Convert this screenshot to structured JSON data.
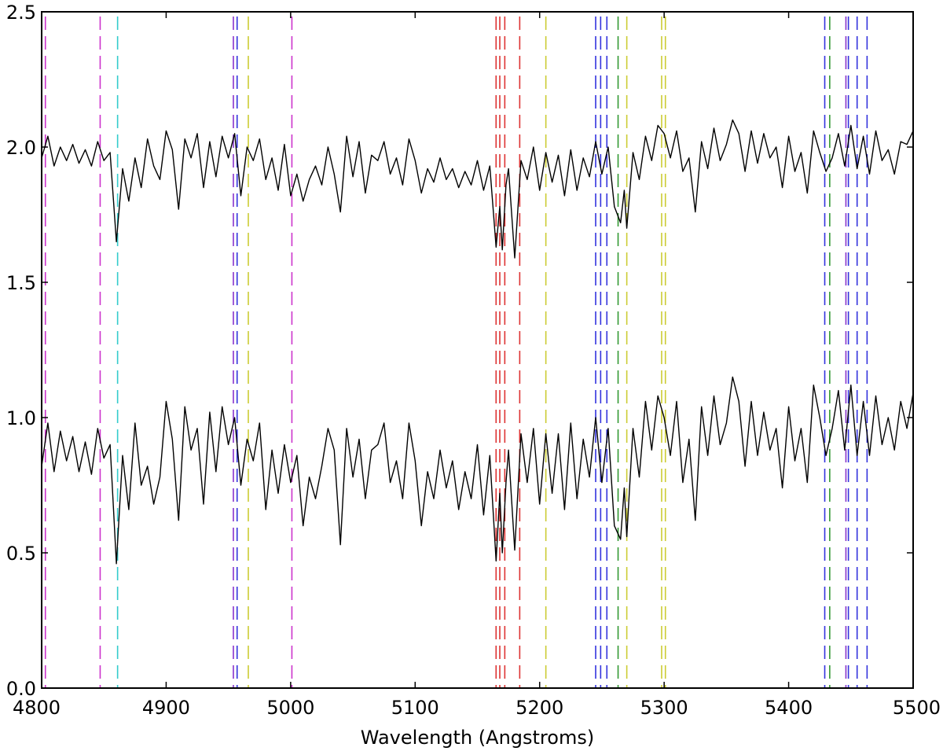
{
  "chart_data": {
    "type": "line",
    "title": "",
    "xlabel": "Wavelength (Angstroms)",
    "ylabel": "",
    "xlim": [
      4800,
      5500
    ],
    "ylim": [
      0.0,
      2.5
    ],
    "xticks": [
      "4800",
      "4900",
      "5000",
      "5100",
      "5200",
      "5300",
      "5400",
      "5500"
    ],
    "yticks": [
      "0.0",
      "0.5",
      "1.0",
      "1.5",
      "2.0",
      "2.5"
    ],
    "grid": false,
    "series": [
      {
        "color": "#000000",
        "x": [
          4800,
          4805,
          4810,
          4815,
          4820,
          4825,
          4830,
          4835,
          4840,
          4845,
          4850,
          4855,
          4860,
          4865,
          4870,
          4875,
          4880,
          4885,
          4890,
          4895,
          4900,
          4905,
          4910,
          4915,
          4920,
          4925,
          4930,
          4935,
          4940,
          4945,
          4950,
          4955,
          4960,
          4965,
          4970,
          4975,
          4980,
          4985,
          4990,
          4995,
          5000,
          5005,
          5010,
          5015,
          5020,
          5025,
          5030,
          5035,
          5040,
          5045,
          5050,
          5055,
          5060,
          5065,
          5070,
          5075,
          5080,
          5085,
          5090,
          5095,
          5100,
          5105,
          5110,
          5115,
          5120,
          5125,
          5130,
          5135,
          5140,
          5145,
          5150,
          5155,
          5160,
          5165,
          5168,
          5170,
          5173,
          5175,
          5180,
          5185,
          5190,
          5195,
          5200,
          5205,
          5210,
          5215,
          5220,
          5225,
          5230,
          5235,
          5240,
          5245,
          5250,
          5255,
          5260,
          5265,
          5268,
          5270,
          5275,
          5280,
          5285,
          5290,
          5295,
          5300,
          5305,
          5310,
          5315,
          5320,
          5325,
          5330,
          5335,
          5340,
          5345,
          5350,
          5355,
          5360,
          5365,
          5370,
          5375,
          5380,
          5385,
          5390,
          5395,
          5400,
          5405,
          5410,
          5415,
          5420,
          5425,
          5430,
          5435,
          5440,
          5445,
          5450,
          5455,
          5460,
          5465,
          5470,
          5475,
          5480,
          5485,
          5490,
          5495,
          5500
        ],
        "y": [
          1.96,
          2.04,
          1.93,
          2.0,
          1.95,
          2.01,
          1.94,
          1.99,
          1.93,
          2.02,
          1.95,
          1.98,
          1.65,
          1.92,
          1.8,
          1.96,
          1.85,
          2.03,
          1.93,
          1.88,
          2.06,
          1.99,
          1.77,
          2.03,
          1.96,
          2.05,
          1.85,
          2.02,
          1.89,
          2.04,
          1.96,
          2.05,
          1.82,
          2.0,
          1.95,
          2.03,
          1.88,
          1.96,
          1.84,
          2.01,
          1.82,
          1.9,
          1.8,
          1.88,
          1.93,
          1.86,
          2.0,
          1.9,
          1.76,
          2.04,
          1.89,
          2.02,
          1.83,
          1.97,
          1.95,
          2.02,
          1.9,
          1.96,
          1.86,
          2.03,
          1.95,
          1.83,
          1.92,
          1.87,
          1.96,
          1.88,
          1.92,
          1.85,
          1.91,
          1.86,
          1.95,
          1.84,
          1.93,
          1.63,
          1.78,
          1.62,
          1.86,
          1.92,
          1.59,
          1.95,
          1.88,
          2.0,
          1.84,
          1.98,
          1.87,
          1.97,
          1.82,
          1.99,
          1.84,
          1.96,
          1.89,
          2.02,
          1.9,
          2.0,
          1.78,
          1.72,
          1.84,
          1.7,
          1.98,
          1.88,
          2.04,
          1.95,
          2.08,
          2.05,
          1.96,
          2.06,
          1.91,
          1.96,
          1.76,
          2.02,
          1.92,
          2.07,
          1.95,
          2.01,
          2.1,
          2.05,
          1.91,
          2.06,
          1.94,
          2.05,
          1.96,
          2.0,
          1.85,
          2.04,
          1.91,
          1.98,
          1.83,
          2.06,
          1.98,
          1.91,
          1.96,
          2.05,
          1.93,
          2.08,
          1.92,
          2.04,
          1.9,
          2.06,
          1.95,
          1.99,
          1.9,
          2.02,
          2.01,
          2.06
        ]
      },
      {
        "color": "#000000",
        "x": [
          4800,
          4805,
          4810,
          4815,
          4820,
          4825,
          4830,
          4835,
          4840,
          4845,
          4850,
          4855,
          4860,
          4865,
          4870,
          4875,
          4880,
          4885,
          4890,
          4895,
          4900,
          4905,
          4910,
          4915,
          4920,
          4925,
          4930,
          4935,
          4940,
          4945,
          4950,
          4955,
          4960,
          4965,
          4970,
          4975,
          4980,
          4985,
          4990,
          4995,
          5000,
          5005,
          5010,
          5015,
          5020,
          5025,
          5030,
          5035,
          5040,
          5045,
          5050,
          5055,
          5060,
          5065,
          5070,
          5075,
          5080,
          5085,
          5090,
          5095,
          5100,
          5105,
          5110,
          5115,
          5120,
          5125,
          5130,
          5135,
          5140,
          5145,
          5150,
          5155,
          5160,
          5165,
          5168,
          5170,
          5173,
          5175,
          5180,
          5185,
          5190,
          5195,
          5200,
          5205,
          5210,
          5215,
          5220,
          5225,
          5230,
          5235,
          5240,
          5245,
          5250,
          5255,
          5260,
          5265,
          5268,
          5270,
          5275,
          5280,
          5285,
          5290,
          5295,
          5300,
          5305,
          5310,
          5315,
          5320,
          5325,
          5330,
          5335,
          5340,
          5345,
          5350,
          5355,
          5360,
          5365,
          5370,
          5375,
          5380,
          5385,
          5390,
          5395,
          5400,
          5405,
          5410,
          5415,
          5420,
          5425,
          5430,
          5435,
          5440,
          5445,
          5450,
          5455,
          5460,
          5465,
          5470,
          5475,
          5480,
          5485,
          5490,
          5495,
          5500
        ],
        "y": [
          0.82,
          0.98,
          0.8,
          0.95,
          0.84,
          0.93,
          0.8,
          0.91,
          0.79,
          0.96,
          0.85,
          0.9,
          0.46,
          0.86,
          0.66,
          0.98,
          0.75,
          0.82,
          0.68,
          0.78,
          1.06,
          0.92,
          0.62,
          1.04,
          0.88,
          0.96,
          0.68,
          1.02,
          0.8,
          1.04,
          0.9,
          1.0,
          0.75,
          0.92,
          0.84,
          0.98,
          0.66,
          0.88,
          0.72,
          0.9,
          0.76,
          0.86,
          0.6,
          0.78,
          0.7,
          0.82,
          0.96,
          0.88,
          0.53,
          0.96,
          0.78,
          0.92,
          0.7,
          0.88,
          0.9,
          0.98,
          0.76,
          0.84,
          0.7,
          0.98,
          0.84,
          0.6,
          0.8,
          0.7,
          0.88,
          0.74,
          0.84,
          0.66,
          0.8,
          0.7,
          0.9,
          0.64,
          0.86,
          0.47,
          0.72,
          0.5,
          0.76,
          0.88,
          0.51,
          0.94,
          0.76,
          0.96,
          0.68,
          0.94,
          0.72,
          0.94,
          0.66,
          0.98,
          0.7,
          0.92,
          0.78,
          1.0,
          0.76,
          0.96,
          0.6,
          0.55,
          0.74,
          0.56,
          0.96,
          0.78,
          1.06,
          0.88,
          1.08,
          1.0,
          0.86,
          1.06,
          0.76,
          0.92,
          0.62,
          1.04,
          0.86,
          1.08,
          0.9,
          0.98,
          1.15,
          1.06,
          0.82,
          1.06,
          0.86,
          1.02,
          0.88,
          0.96,
          0.74,
          1.04,
          0.84,
          0.96,
          0.76,
          1.12,
          1.0,
          0.86,
          0.96,
          1.1,
          0.88,
          1.12,
          0.86,
          1.06,
          0.86,
          1.08,
          0.9,
          1.0,
          0.88,
          1.06,
          0.96,
          1.09
        ]
      }
    ],
    "vlines": [
      {
        "x": 4803,
        "color": "#cc33cc"
      },
      {
        "x": 4847,
        "color": "#cc33cc"
      },
      {
        "x": 4861,
        "color": "#33cccc"
      },
      {
        "x": 4954,
        "color": "#8833cc"
      },
      {
        "x": 4957,
        "color": "#3333dd"
      },
      {
        "x": 4966,
        "color": "#cccc33"
      },
      {
        "x": 5001,
        "color": "#cc33cc"
      },
      {
        "x": 5165,
        "color": "#dd3333"
      },
      {
        "x": 5168,
        "color": "#dd3333"
      },
      {
        "x": 5172,
        "color": "#dd3333"
      },
      {
        "x": 5184,
        "color": "#dd3333"
      },
      {
        "x": 5205,
        "color": "#cccc33"
      },
      {
        "x": 5245,
        "color": "#3333dd"
      },
      {
        "x": 5249,
        "color": "#3333dd"
      },
      {
        "x": 5254,
        "color": "#3333dd"
      },
      {
        "x": 5263,
        "color": "#339933"
      },
      {
        "x": 5270,
        "color": "#cccc33"
      },
      {
        "x": 5298,
        "color": "#cccc33"
      },
      {
        "x": 5301,
        "color": "#cccc33"
      },
      {
        "x": 5429,
        "color": "#3333dd"
      },
      {
        "x": 5433,
        "color": "#339933"
      },
      {
        "x": 5446,
        "color": "#8833cc"
      },
      {
        "x": 5448,
        "color": "#3333dd"
      },
      {
        "x": 5455,
        "color": "#3333dd"
      },
      {
        "x": 5463,
        "color": "#3333dd"
      }
    ]
  }
}
